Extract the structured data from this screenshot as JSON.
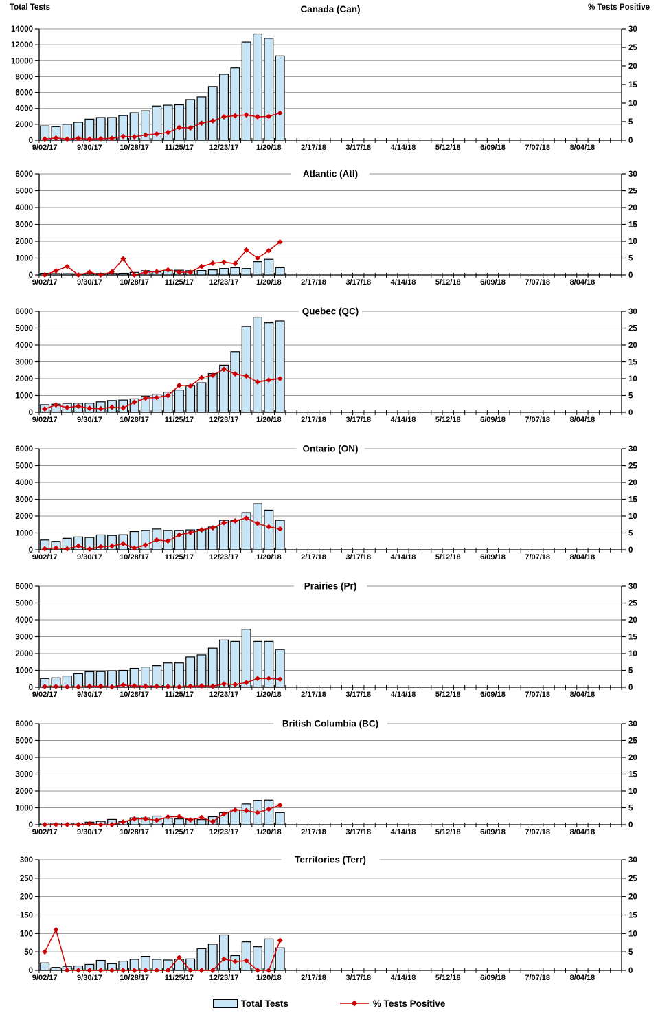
{
  "page": {
    "left_axis_header": "Total Tests",
    "right_axis_header": "% Tests Positive"
  },
  "legend": {
    "total_tests": "Total Tests",
    "pct_positive": "% Tests Positive"
  },
  "colors": {
    "bar_fill": "#C9E6F8",
    "bar_stroke": "#000000",
    "line": "#CC0000",
    "gridline": "#969696",
    "axis": "#000000",
    "text": "#000000"
  },
  "x_axis": {
    "tick_labels": [
      "9/02/17",
      "9/30/17",
      "10/28/17",
      "11/25/17",
      "12/23/17",
      "1/20/18",
      "2/17/18",
      "3/17/18",
      "4/14/18",
      "5/12/18",
      "6/09/18",
      "7/07/18",
      "8/04/18"
    ],
    "weeks_total": 52,
    "label_every_n_weeks": 4,
    "first_week": "9/02/17",
    "last_data_week": "1/27/18"
  },
  "chart_data": [
    {
      "type": "bar+line",
      "title": "Canada (Can)",
      "left_axis": {
        "label": "Total Tests",
        "min": 0,
        "max": 14000,
        "step": 2000
      },
      "right_axis": {
        "label": "% Tests Positive",
        "min": 0,
        "max": 30,
        "step": 5
      },
      "series": [
        {
          "name": "Total Tests",
          "values": [
            1800,
            1700,
            2000,
            2250,
            2650,
            2850,
            2850,
            3100,
            3450,
            3700,
            4300,
            4400,
            4450,
            5100,
            5450,
            6750,
            8300,
            9100,
            12350,
            13350,
            12800,
            10600
          ]
        },
        {
          "name": "% Tests Positive",
          "values": [
            0.3,
            0.6,
            0.3,
            0.5,
            0.3,
            0.4,
            0.5,
            1.0,
            0.9,
            1.4,
            1.7,
            2.1,
            3.4,
            3.3,
            4.6,
            5.2,
            6.3,
            6.6,
            6.8,
            6.3,
            6.4,
            7.3
          ]
        }
      ]
    },
    {
      "type": "bar+line",
      "title": "Atlantic (Atl)",
      "left_axis": {
        "label": "Total Tests",
        "min": 0,
        "max": 6000,
        "step": 1000
      },
      "right_axis": {
        "label": "% Tests Positive",
        "min": 0,
        "max": 30,
        "step": 5
      },
      "series": [
        {
          "name": "Total Tests",
          "values": [
            100,
            80,
            80,
            70,
            80,
            90,
            90,
            100,
            150,
            250,
            180,
            280,
            280,
            250,
            260,
            300,
            380,
            430,
            380,
            790,
            930,
            430
          ]
        },
        {
          "name": "% Tests Positive",
          "values": [
            0,
            1.2,
            2.5,
            0,
            0.8,
            0,
            0.9,
            4.8,
            0,
            0.8,
            1.0,
            1.5,
            0.8,
            0.8,
            2.5,
            3.5,
            3.8,
            3.4,
            7.4,
            5.0,
            7.2,
            9.8
          ]
        }
      ]
    },
    {
      "type": "bar+line",
      "title": "Quebec (QC)",
      "left_axis": {
        "label": "Total Tests",
        "min": 0,
        "max": 6000,
        "step": 1000
      },
      "right_axis": {
        "label": "% Tests Positive",
        "min": 0,
        "max": 30,
        "step": 5
      },
      "series": [
        {
          "name": "Total Tests",
          "values": [
            450,
            480,
            530,
            540,
            540,
            620,
            700,
            730,
            800,
            950,
            1080,
            1200,
            1320,
            1600,
            1750,
            2300,
            2800,
            3600,
            5100,
            5650,
            5320,
            5430
          ]
        },
        {
          "name": "% Tests Positive",
          "values": [
            1.0,
            2.2,
            1.4,
            1.8,
            1.2,
            1.1,
            1.5,
            1.3,
            3.0,
            4.2,
            4.4,
            5.0,
            8.0,
            7.8,
            10.3,
            11.0,
            12.8,
            11.4,
            10.8,
            9.0,
            9.6,
            10.0
          ]
        }
      ]
    },
    {
      "type": "bar+line",
      "title": "Ontario (ON)",
      "left_axis": {
        "label": "Total Tests",
        "min": 0,
        "max": 6000,
        "step": 1000
      },
      "right_axis": {
        "label": "% Tests Positive",
        "min": 0,
        "max": 30,
        "step": 5
      },
      "series": [
        {
          "name": "Total Tests",
          "values": [
            580,
            500,
            680,
            760,
            730,
            880,
            850,
            890,
            1080,
            1150,
            1230,
            1150,
            1150,
            1180,
            1200,
            1350,
            1750,
            1750,
            2200,
            2730,
            2350,
            1750
          ]
        },
        {
          "name": "% Tests Positive",
          "values": [
            0.3,
            0.5,
            0.3,
            1.1,
            0.2,
            0.9,
            1.1,
            1.8,
            0.5,
            1.4,
            2.9,
            2.6,
            4.4,
            5.1,
            5.9,
            6.5,
            8.0,
            8.6,
            9.4,
            7.8,
            6.8,
            6.2
          ]
        }
      ]
    },
    {
      "type": "bar+line",
      "title": "Prairies (Pr)",
      "left_axis": {
        "label": "Total Tests",
        "min": 0,
        "max": 6000,
        "step": 1000
      },
      "right_axis": {
        "label": "% Tests Positive",
        "min": 0,
        "max": 30,
        "step": 5
      },
      "series": [
        {
          "name": "Total Tests",
          "values": [
            520,
            560,
            670,
            800,
            920,
            930,
            970,
            1000,
            1120,
            1200,
            1280,
            1440,
            1440,
            1800,
            1920,
            2320,
            2800,
            2720,
            3440,
            2720,
            2720,
            2240
          ]
        },
        {
          "name": "% Tests Positive",
          "values": [
            0.2,
            0.2,
            0.1,
            0.1,
            0.3,
            0.3,
            0.1,
            0.6,
            0.4,
            0.3,
            0.3,
            0.2,
            0.1,
            0.3,
            0.4,
            0.3,
            1.0,
            0.8,
            1.4,
            2.6,
            2.6,
            2.4
          ]
        }
      ]
    },
    {
      "type": "bar+line",
      "title": "British Columbia (BC)",
      "left_axis": {
        "label": "Total Tests",
        "min": 0,
        "max": 6000,
        "step": 1000
      },
      "right_axis": {
        "label": "% Tests Positive",
        "min": 0,
        "max": 30,
        "step": 5
      },
      "series": [
        {
          "name": "Total Tests",
          "values": [
            100,
            90,
            100,
            100,
            150,
            200,
            310,
            200,
            400,
            400,
            510,
            380,
            340,
            310,
            300,
            470,
            720,
            880,
            1230,
            1440,
            1460,
            720
          ]
        },
        {
          "name": "% Tests Positive",
          "values": [
            0,
            0,
            0,
            0,
            0.3,
            0,
            0,
            0.8,
            1.7,
            1.7,
            1.3,
            2.3,
            2.4,
            1.4,
            2.1,
            0.9,
            3.2,
            4.4,
            4.2,
            3.6,
            4.6,
            5.8
          ]
        }
      ]
    },
    {
      "type": "bar+line",
      "title": "Territories (Terr)",
      "left_axis": {
        "label": "Total Tests",
        "min": 0,
        "max": 300,
        "step": 50
      },
      "right_axis": {
        "label": "% Tests Positive",
        "min": 0,
        "max": 30,
        "step": 5
      },
      "series": [
        {
          "name": "Total Tests",
          "values": [
            20,
            8,
            11,
            12,
            16,
            27,
            18,
            25,
            30,
            38,
            30,
            28,
            30,
            31,
            59,
            71,
            96,
            40,
            77,
            64,
            85,
            61
          ]
        },
        {
          "name": "% Tests Positive",
          "values": [
            5.0,
            11.0,
            0,
            0,
            0,
            0,
            0,
            0,
            0,
            0,
            0,
            0,
            3.5,
            0,
            0,
            0,
            3.1,
            2.4,
            2.6,
            0,
            0,
            8.1
          ]
        }
      ]
    }
  ]
}
